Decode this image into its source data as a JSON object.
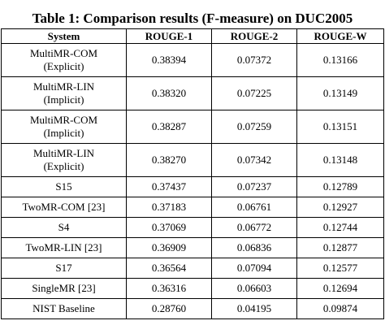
{
  "caption": "Table 1: Comparison results (F-measure) on DUC2005",
  "table": {
    "headers": [
      "System",
      "ROUGE-1",
      "ROUGE-2",
      "ROUGE-W"
    ],
    "rows": [
      {
        "system": [
          "MultiMR-COM",
          "(Explicit)"
        ],
        "rouge1": "0.38394",
        "rouge2": "0.07372",
        "rougew": "0.13166"
      },
      {
        "system": [
          "MultiMR-LIN",
          "(Implicit)"
        ],
        "rouge1": "0.38320",
        "rouge2": "0.07225",
        "rougew": "0.13149"
      },
      {
        "system": [
          "MultiMR-COM",
          "(Implicit)"
        ],
        "rouge1": "0.38287",
        "rouge2": "0.07259",
        "rougew": "0.13151"
      },
      {
        "system": [
          "MultiMR-LIN",
          "(Explicit)"
        ],
        "rouge1": "0.38270",
        "rouge2": "0.07342",
        "rougew": "0.13148"
      },
      {
        "system": [
          "S15"
        ],
        "rouge1": "0.37437",
        "rouge2": "0.07237",
        "rougew": "0.12789"
      },
      {
        "system": [
          "TwoMR-COM [23]"
        ],
        "rouge1": "0.37183",
        "rouge2": "0.06761",
        "rougew": "0.12927"
      },
      {
        "system": [
          "S4"
        ],
        "rouge1": "0.37069",
        "rouge2": "0.06772",
        "rougew": "0.12744"
      },
      {
        "system": [
          "TwoMR-LIN [23]"
        ],
        "rouge1": "0.36909",
        "rouge2": "0.06836",
        "rougew": "0.12877"
      },
      {
        "system": [
          "S17"
        ],
        "rouge1": "0.36564",
        "rouge2": "0.07094",
        "rougew": "0.12577"
      },
      {
        "system": [
          "SingleMR [23]"
        ],
        "rouge1": "0.36316",
        "rouge2": "0.06603",
        "rougew": "0.12694"
      },
      {
        "system": [
          "NIST Baseline"
        ],
        "rouge1": "0.28760",
        "rouge2": "0.04195",
        "rougew": "0.09874"
      }
    ]
  }
}
